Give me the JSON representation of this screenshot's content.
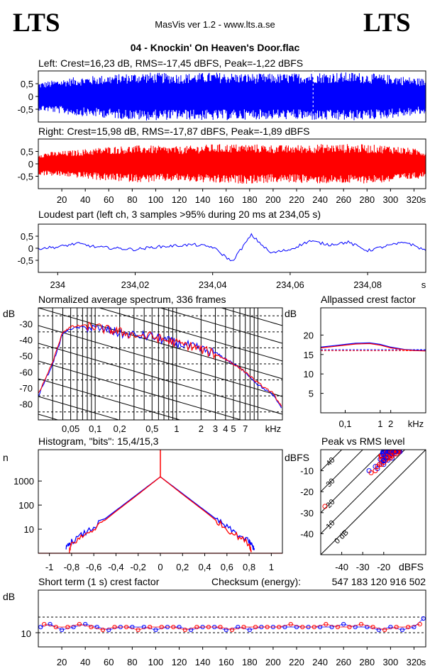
{
  "app": {
    "logo_left": "LTS",
    "logo_right": "LTS",
    "header": "MasVis ver 1.2 - www.lts.a.se",
    "file_title": "04 - Knockin' On Heaven's Door.flac"
  },
  "colors": {
    "left": "#0000ff",
    "right": "#ff0000",
    "frame": "#000000"
  },
  "chart_data": [
    {
      "id": "waveform-left",
      "type": "area",
      "title": "Left: Crest=16,23 dB, RMS=-17,45 dBFS, Peak=-1,22 dBFS",
      "y_ticks": [
        "0,5",
        "0",
        "-0,5"
      ],
      "ylim": [
        -1,
        1
      ],
      "xlim": [
        0,
        330
      ],
      "series": [
        {
          "color": "#0000ff",
          "envelope_amplitude": [
            0.55,
            0.75,
            0.85,
            0.95,
            0.9,
            0.95,
            0.9,
            0.9,
            0.95,
            0.95,
            0.85,
            0.7
          ]
        }
      ],
      "marker_x": 234.05
    },
    {
      "id": "waveform-right",
      "type": "area",
      "title": "Right: Crest=15,98 dB, RMS=-17,87 dBFS, Peak=-1,89 dBFS",
      "y_ticks": [
        "0,5",
        "0",
        "-0,5"
      ],
      "ylim": [
        -1,
        1
      ],
      "xlim": [
        0,
        330
      ],
      "x_ticks": [
        "20",
        "40",
        "60",
        "80",
        "100",
        "120",
        "140",
        "160",
        "180",
        "200",
        "220",
        "240",
        "260",
        "280",
        "300",
        "320"
      ],
      "x_unit": "s",
      "series": [
        {
          "color": "#ff0000",
          "envelope_amplitude": [
            0.45,
            0.55,
            0.7,
            0.75,
            0.7,
            0.8,
            0.8,
            0.75,
            0.8,
            0.8,
            0.75,
            0.55
          ]
        }
      ]
    },
    {
      "id": "loudest-part",
      "type": "line",
      "title": "Loudest part (left  ch, 3 samples >95% during 20 ms at 234,05 s)",
      "y_ticks": [
        "0,5",
        "0",
        "-0,5"
      ],
      "ylim": [
        -1,
        1
      ],
      "x_ticks": [
        "234",
        "234,02",
        "234,04",
        "234,06",
        "234,08"
      ],
      "x_unit": "s",
      "xlim": [
        233.995,
        234.095
      ],
      "series": [
        {
          "color": "#0000ff",
          "x": [
            233.995,
            234.0,
            234.005,
            234.01,
            234.015,
            234.02,
            234.025,
            234.03,
            234.035,
            234.04,
            234.045,
            234.05,
            234.055,
            234.06,
            234.065,
            234.07,
            234.075,
            234.08,
            234.085,
            234.09,
            234.095
          ],
          "y": [
            0.0,
            0.05,
            0.2,
            0.05,
            0.0,
            -0.05,
            0.05,
            0.1,
            0.15,
            0.05,
            -0.55,
            0.55,
            -0.2,
            -0.05,
            0.3,
            0.15,
            0.25,
            -0.1,
            0.1,
            0.25,
            -0.1
          ]
        }
      ]
    },
    {
      "id": "spectrum",
      "type": "line",
      "title": "Normalized average spectrum, 336 frames",
      "ylabel": "dB",
      "y_ticks": [
        "-30",
        "-40",
        "-50",
        "-60",
        "-70",
        "-80"
      ],
      "ylim": [
        -90,
        -20
      ],
      "x_ticks": [
        "0,05",
        "0,1",
        "0,2",
        "0,5",
        "1",
        "2",
        "3",
        "4",
        "5",
        "7"
      ],
      "x_unit": "kHz",
      "xscale": "log",
      "xlim": [
        0.02,
        20
      ],
      "series": [
        {
          "color": "#0000ff",
          "x": [
            0.02,
            0.03,
            0.04,
            0.05,
            0.07,
            0.1,
            0.15,
            0.2,
            0.3,
            0.5,
            0.7,
            1,
            1.5,
            2,
            3,
            4,
            5,
            7,
            10,
            15,
            20
          ],
          "y": [
            -75,
            -55,
            -36,
            -33,
            -32,
            -33,
            -34,
            -36,
            -37,
            -38,
            -40,
            -42,
            -44,
            -46,
            -48,
            -52,
            -55,
            -60,
            -68,
            -74,
            -83
          ]
        },
        {
          "color": "#ff0000",
          "x": [
            0.02,
            0.03,
            0.04,
            0.05,
            0.07,
            0.1,
            0.15,
            0.2,
            0.3,
            0.5,
            0.7,
            1,
            1.5,
            2,
            3,
            4,
            5,
            7,
            10,
            15,
            20
          ],
          "y": [
            -74,
            -54,
            -35,
            -32,
            -31,
            -32,
            -34,
            -35,
            -37,
            -38,
            -40,
            -42,
            -44,
            -46,
            -49,
            -52,
            -55,
            -60,
            -67,
            -73,
            -82
          ]
        }
      ]
    },
    {
      "id": "allpassed-crest",
      "type": "line",
      "title": "Allpassed crest factor",
      "ylabel": "dB",
      "y_ticks": [
        "20",
        "15",
        "10",
        "5"
      ],
      "ylim": [
        0,
        27
      ],
      "x_ticks": [
        "0,1",
        "1",
        "2"
      ],
      "x_unit": "kHz",
      "xscale": "log",
      "xlim": [
        0.02,
        20
      ],
      "series": [
        {
          "color": "#0000ff",
          "x": [
            0.02,
            0.05,
            0.1,
            0.2,
            0.5,
            1,
            2,
            5,
            10,
            20
          ],
          "y": [
            16.9,
            17.3,
            17.6,
            17.9,
            18.0,
            17.6,
            16.9,
            16.3,
            16.1,
            16.0
          ]
        },
        {
          "color": "#ff0000",
          "x": [
            0.02,
            0.05,
            0.1,
            0.2,
            0.5,
            1,
            2,
            5,
            10,
            20
          ],
          "y": [
            16.7,
            17.1,
            17.4,
            17.7,
            17.8,
            17.4,
            16.7,
            16.2,
            16.0,
            15.9
          ]
        }
      ],
      "ref_lines": [
        16.23,
        15.98
      ]
    },
    {
      "id": "histogram",
      "type": "line",
      "title": "Histogram, \"bits\": 15,4/15,3",
      "ylabel": "n",
      "y_ticks": [
        "1000",
        "100",
        "10"
      ],
      "yscale": "log",
      "ylim": [
        1,
        20000
      ],
      "x_ticks": [
        "-1",
        "-0,8",
        "-0,6",
        "-0,4",
        "-0,2",
        "0",
        "0,2",
        "0,4",
        "0,6",
        "0,8",
        "1"
      ],
      "xlim": [
        -1.1,
        1.1
      ],
      "series": [
        {
          "color": "#0000ff",
          "x": [
            -0.85,
            -0.8,
            -0.6,
            -0.4,
            -0.2,
            0,
            0.2,
            0.4,
            0.6,
            0.8,
            0.85
          ],
          "y": [
            1.5,
            3,
            12,
            60,
            300,
            1500,
            300,
            60,
            12,
            3,
            1.5
          ]
        },
        {
          "color": "#ff0000",
          "x": [
            -0.82,
            -0.8,
            -0.6,
            -0.4,
            -0.2,
            0,
            0.2,
            0.4,
            0.6,
            0.8,
            0.82
          ],
          "y": [
            1.2,
            2.5,
            10,
            55,
            280,
            1500,
            280,
            55,
            10,
            2.5,
            1.2
          ]
        }
      ]
    },
    {
      "id": "peak-vs-rms",
      "type": "scatter",
      "title": "Peak vs RMS level",
      "ylabel": "dBFS",
      "xlabel": "dBFS",
      "y_ticks": [
        "-10",
        "-20",
        "-30",
        "-40"
      ],
      "x_ticks": [
        "-40",
        "-30",
        "-20"
      ],
      "xlim": [
        -50,
        0
      ],
      "ylim": [
        -50,
        0
      ],
      "crest_line_labels": [
        "40",
        "30",
        "20",
        "10",
        "0 dB"
      ],
      "crest_line_values": [
        40,
        30,
        20,
        10,
        0
      ],
      "series": [
        {
          "color": "#0000ff",
          "x": [
            -27,
            -24,
            -22,
            -20,
            -18,
            -17,
            -16,
            -15,
            -19,
            -21,
            -23,
            -14,
            -13,
            -16,
            -18,
            -20
          ],
          "y": [
            -10,
            -8,
            -7,
            -6,
            -4,
            -3,
            -3,
            -2,
            -5,
            -6,
            -9,
            -2,
            -1,
            -4,
            -5,
            -7
          ]
        },
        {
          "color": "#ff0000",
          "x": [
            -48,
            -26,
            -23,
            -21,
            -19,
            -17,
            -16,
            -15,
            -20,
            -22,
            -24,
            -14,
            -18,
            -16
          ],
          "y": [
            -27,
            -11,
            -8,
            -7,
            -5,
            -4,
            -3,
            -2,
            -6,
            -7,
            -10,
            -2,
            -4,
            -3
          ]
        }
      ]
    },
    {
      "id": "short-term-crest",
      "type": "scatter",
      "title": "Short term (1 s) crest factor",
      "checksum_label": "Checksum (energy):",
      "checksum_value": "547 183 120 916 502",
      "ylabel": "dB",
      "y_ticks": [
        "10"
      ],
      "ylim": [
        5,
        25
      ],
      "x_ticks": [
        "20",
        "40",
        "60",
        "80",
        "100",
        "120",
        "140",
        "160",
        "180",
        "200",
        "220",
        "240",
        "260",
        "280",
        "300",
        "320"
      ],
      "x_unit": "s",
      "xlim": [
        0,
        330
      ],
      "ref_lines": [
        10,
        15.5
      ],
      "series": [
        {
          "color": "#0000ff",
          "x": [
            2,
            10,
            20,
            30,
            40,
            50,
            60,
            70,
            80,
            90,
            100,
            110,
            120,
            130,
            140,
            150,
            160,
            170,
            180,
            190,
            200,
            210,
            220,
            230,
            240,
            250,
            260,
            270,
            280,
            290,
            300,
            310,
            320,
            328
          ],
          "y": [
            12,
            13,
            11,
            12,
            13,
            12,
            11,
            12,
            12,
            12,
            11,
            12,
            12,
            11,
            12,
            12,
            11,
            12,
            11,
            12,
            12,
            12,
            12,
            12,
            12,
            12,
            13,
            12,
            12,
            11,
            12,
            11,
            12,
            15
          ]
        },
        {
          "color": "#ff0000",
          "x": [
            5,
            15,
            25,
            35,
            45,
            55,
            65,
            75,
            85,
            95,
            105,
            115,
            125,
            135,
            145,
            155,
            165,
            175,
            185,
            195,
            205,
            215,
            225,
            235,
            245,
            255,
            265,
            275,
            285,
            295,
            305,
            315,
            325
          ],
          "y": [
            13,
            12,
            12,
            13,
            12,
            11,
            12,
            12,
            11,
            12,
            12,
            12,
            11,
            12,
            12,
            12,
            11,
            12,
            12,
            12,
            12,
            13,
            12,
            12,
            13,
            12,
            12,
            13,
            12,
            11,
            12,
            12,
            13
          ]
        }
      ]
    }
  ]
}
